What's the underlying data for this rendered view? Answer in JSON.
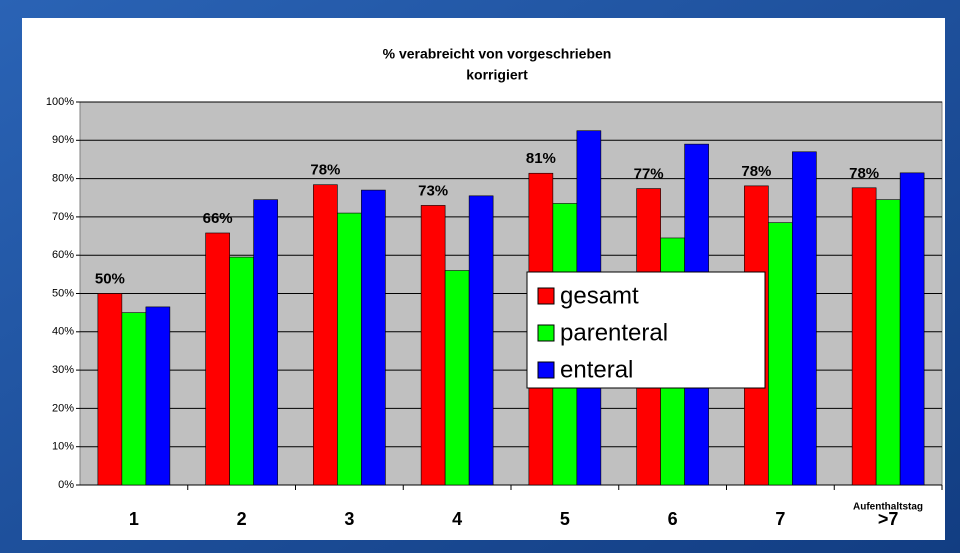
{
  "chart_data": {
    "type": "bar",
    "title": "% verabreicht von vorgeschrieben",
    "subtitle": "korrigiert",
    "x_label": "Aufenthaltstag",
    "categories": [
      "1",
      "2",
      "3",
      "4",
      "5",
      "6",
      "7",
      ">7"
    ],
    "series": [
      {
        "name": "gesamt",
        "color": "#ff0000",
        "values": [
          50,
          65.8,
          78.4,
          73,
          81.4,
          77.4,
          78.1,
          77.6
        ],
        "value_labels": [
          "50%",
          "66%",
          "78%",
          "73%",
          "81%",
          "77%",
          "78%",
          "78%"
        ]
      },
      {
        "name": "parenteral",
        "color": "#00ff00",
        "values": [
          45,
          59.5,
          71,
          56,
          73.5,
          64.5,
          68.5,
          74.5
        ]
      },
      {
        "name": "enteral",
        "color": "#0000ff",
        "values": [
          46.5,
          74.5,
          77,
          75.5,
          92.5,
          89,
          87,
          81.5
        ]
      }
    ],
    "ylim": [
      0,
      100
    ],
    "yticks": [
      {
        "value": 0,
        "label": "0%"
      },
      {
        "value": 10,
        "label": "10%"
      },
      {
        "value": 20,
        "label": "20%"
      },
      {
        "value": 30,
        "label": "30%"
      },
      {
        "value": 40,
        "label": "40%"
      },
      {
        "value": 50,
        "label": "50%"
      },
      {
        "value": 60,
        "label": "60%"
      },
      {
        "value": 70,
        "label": "70%"
      },
      {
        "value": 80,
        "label": "80%"
      },
      {
        "value": 90,
        "label": "90%"
      },
      {
        "value": 100,
        "label": "100%"
      }
    ],
    "grid": true
  }
}
